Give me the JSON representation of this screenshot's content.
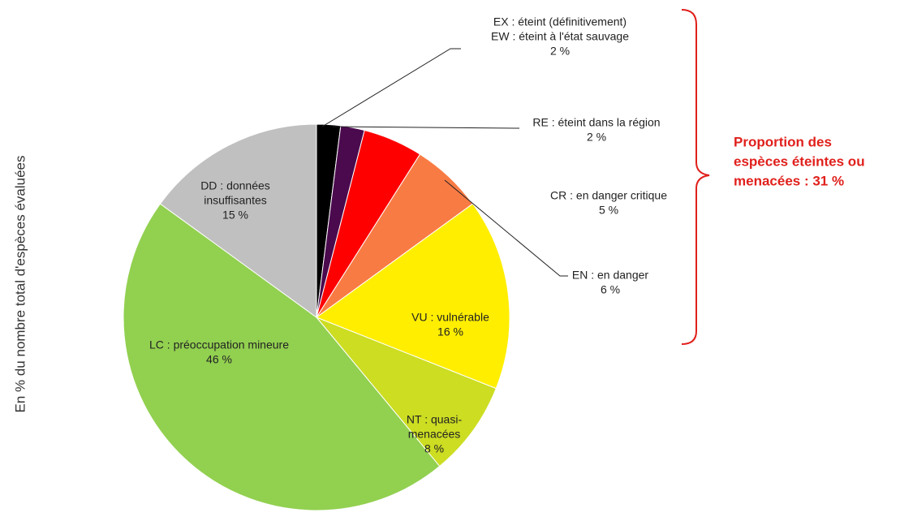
{
  "chart_data": {
    "type": "pie",
    "ylabel": "En % du nombre total d'espèces évaluées",
    "categories": [
      [
        "EX : éteint (définitivement)",
        "EW : éteint à l'état sauvage"
      ],
      [
        "RE : éteint dans la région"
      ],
      [
        "CR : en danger critique"
      ],
      [
        "EN : en danger"
      ],
      [
        "VU : vulnérable"
      ],
      [
        "NT : quasi-",
        "menacées"
      ],
      [
        "LC : préoccupation  mineure"
      ],
      [
        "DD : données",
        "insuffisantes"
      ]
    ],
    "values": [
      2,
      2,
      5,
      6,
      16,
      8,
      46,
      15
    ],
    "value_labels": [
      "2 %",
      "2 %",
      "5 %",
      "6 %",
      "16 %",
      "8 %",
      "46 %",
      "15 %"
    ],
    "colors": [
      "#000000",
      "#4b0a4e",
      "#ff0000",
      "#f97b44",
      "#ffee00",
      "#ccdd22",
      "#92d050",
      "#c0c0c0"
    ],
    "annotation": [
      "Proportion des",
      "espèces éteintes ou",
      "menacées : 31 %"
    ]
  }
}
